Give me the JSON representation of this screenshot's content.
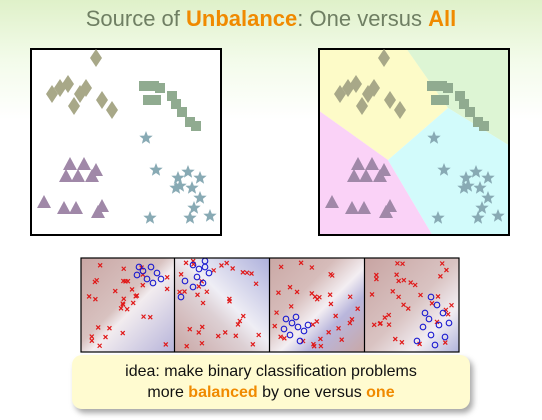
{
  "title": {
    "part1": "Source of ",
    "highlight1": "Unbalance",
    "part2": ": One versus ",
    "highlight2": "All"
  },
  "callout": {
    "line1": "idea: make binary classification problems",
    "line2_pre": "more ",
    "line2_highlight1": "balanced",
    "line2_mid": " by one versus ",
    "line2_highlight2": "one"
  },
  "colors": {
    "accent": "#f08a00",
    "diamond": "#a8a888",
    "square": "#90ab90",
    "triangle": "#a088a8",
    "star": "#88aab4",
    "region_yellow": "#fdfbc8",
    "region_green": "#ddf5d4",
    "region_pink": "#fad2f7",
    "region_cyan": "#d2fbfb",
    "cross": "#e01818",
    "circle": "#1818d0"
  },
  "icons": {
    "class_1": "diamond-marker",
    "class_2": "square-marker",
    "class_3": "triangle-marker",
    "class_4": "star-marker",
    "positive": "cross-marker",
    "negative": "circle-marker"
  }
}
